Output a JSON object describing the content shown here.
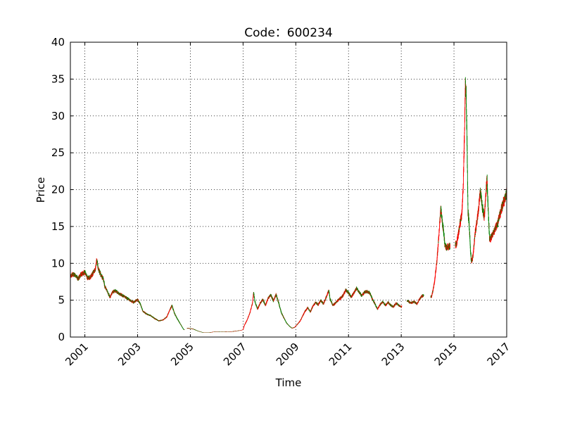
{
  "chart_data": {
    "type": "candlestick",
    "title": "Code：600234",
    "xlabel": "Time",
    "ylabel": "Price",
    "xlim": [
      2000.45,
      2017.0
    ],
    "ylim": [
      0,
      40
    ],
    "yticks": [
      0,
      5,
      10,
      15,
      20,
      25,
      30,
      35,
      40
    ],
    "xticks": [
      2001,
      2003,
      2005,
      2007,
      2009,
      2011,
      2013,
      2015,
      2017
    ],
    "xtick_labels": [
      "2001",
      "2003",
      "2005",
      "2007",
      "2009",
      "2011",
      "2013",
      "2015",
      "2017"
    ],
    "grid": true,
    "colors": {
      "up": "#ff0000",
      "down": "#008000"
    },
    "price_path": [
      [
        2000.45,
        8.2
      ],
      [
        2000.55,
        8.6
      ],
      [
        2000.65,
        8.3
      ],
      [
        2000.75,
        7.9
      ],
      [
        2000.85,
        8.5
      ],
      [
        2001.0,
        8.8
      ],
      [
        2001.1,
        8.0
      ],
      [
        2001.2,
        8.1
      ],
      [
        2001.3,
        8.6
      ],
      [
        2001.4,
        9.2
      ],
      [
        2001.45,
        10.5
      ],
      [
        2001.5,
        9.3
      ],
      [
        2001.6,
        8.5
      ],
      [
        2001.7,
        7.8
      ],
      [
        2001.75,
        6.9
      ],
      [
        2001.85,
        6.2
      ],
      [
        2001.95,
        5.4
      ],
      [
        2002.05,
        6.1
      ],
      [
        2002.15,
        6.3
      ],
      [
        2002.3,
        5.9
      ],
      [
        2002.45,
        5.6
      ],
      [
        2002.55,
        5.4
      ],
      [
        2002.7,
        5.0
      ],
      [
        2002.85,
        4.7
      ],
      [
        2003.0,
        5.1
      ],
      [
        2003.1,
        4.5
      ],
      [
        2003.2,
        3.5
      ],
      [
        2003.35,
        3.1
      ],
      [
        2003.5,
        2.9
      ],
      [
        2003.65,
        2.5
      ],
      [
        2003.8,
        2.2
      ],
      [
        2003.95,
        2.3
      ],
      [
        2004.1,
        2.7
      ],
      [
        2004.2,
        3.5
      ],
      [
        2004.3,
        4.3
      ],
      [
        2004.4,
        3.2
      ],
      [
        2004.5,
        2.5
      ],
      [
        2004.6,
        1.9
      ],
      [
        2004.7,
        1.3
      ],
      [
        2004.75,
        1.0
      ],
      [
        2004.9,
        1.2
      ],
      [
        2005.1,
        1.1
      ],
      [
        2005.3,
        0.8
      ],
      [
        2005.5,
        0.6
      ],
      [
        2005.7,
        0.6
      ],
      [
        2005.9,
        0.7
      ],
      [
        2006.1,
        0.7
      ],
      [
        2006.3,
        0.7
      ],
      [
        2006.5,
        0.7
      ],
      [
        2006.7,
        0.8
      ],
      [
        2006.9,
        0.9
      ],
      [
        2007.0,
        1.0
      ],
      [
        2007.05,
        1.6
      ],
      [
        2007.15,
        2.3
      ],
      [
        2007.25,
        3.2
      ],
      [
        2007.35,
        4.5
      ],
      [
        2007.4,
        6.0
      ],
      [
        2007.45,
        4.8
      ],
      [
        2007.55,
        3.8
      ],
      [
        2007.65,
        4.6
      ],
      [
        2007.75,
        5.1
      ],
      [
        2007.85,
        4.3
      ],
      [
        2007.95,
        5.3
      ],
      [
        2008.05,
        5.7
      ],
      [
        2008.15,
        4.9
      ],
      [
        2008.25,
        5.8
      ],
      [
        2008.35,
        4.6
      ],
      [
        2008.45,
        3.3
      ],
      [
        2008.55,
        2.6
      ],
      [
        2008.65,
        1.9
      ],
      [
        2008.75,
        1.5
      ],
      [
        2008.85,
        1.2
      ],
      [
        2008.95,
        1.3
      ],
      [
        2009.05,
        1.7
      ],
      [
        2009.15,
        2.1
      ],
      [
        2009.25,
        2.8
      ],
      [
        2009.35,
        3.5
      ],
      [
        2009.45,
        4.0
      ],
      [
        2009.55,
        3.4
      ],
      [
        2009.65,
        4.2
      ],
      [
        2009.75,
        4.7
      ],
      [
        2009.85,
        4.4
      ],
      [
        2009.95,
        5.0
      ],
      [
        2010.05,
        4.5
      ],
      [
        2010.15,
        5.4
      ],
      [
        2010.25,
        6.3
      ],
      [
        2010.3,
        5.2
      ],
      [
        2010.4,
        4.3
      ],
      [
        2010.5,
        4.6
      ],
      [
        2010.6,
        5.0
      ],
      [
        2010.7,
        5.3
      ],
      [
        2010.8,
        5.7
      ],
      [
        2010.9,
        6.4
      ],
      [
        2011.0,
        6.0
      ],
      [
        2011.1,
        5.4
      ],
      [
        2011.2,
        6.0
      ],
      [
        2011.3,
        6.6
      ],
      [
        2011.4,
        6.1
      ],
      [
        2011.5,
        5.6
      ],
      [
        2011.6,
        6.1
      ],
      [
        2011.7,
        6.2
      ],
      [
        2011.8,
        6.0
      ],
      [
        2011.9,
        5.2
      ],
      [
        2012.0,
        4.5
      ],
      [
        2012.1,
        3.8
      ],
      [
        2012.2,
        4.4
      ],
      [
        2012.3,
        4.8
      ],
      [
        2012.4,
        4.3
      ],
      [
        2012.5,
        4.7
      ],
      [
        2012.6,
        4.3
      ],
      [
        2012.7,
        4.1
      ],
      [
        2012.8,
        4.6
      ],
      [
        2012.9,
        4.3
      ],
      [
        2013.0,
        4.1
      ],
      [
        2013.25,
        4.9
      ],
      [
        2013.35,
        4.6
      ],
      [
        2013.5,
        4.8
      ],
      [
        2013.6,
        4.5
      ],
      [
        2013.7,
        5.2
      ],
      [
        2013.8,
        5.6
      ],
      [
        2014.15,
        5.5
      ],
      [
        2014.25,
        7.2
      ],
      [
        2014.35,
        10.2
      ],
      [
        2014.42,
        13.5
      ],
      [
        2014.5,
        17.5
      ],
      [
        2014.55,
        15.8
      ],
      [
        2014.6,
        14.5
      ],
      [
        2014.65,
        12.6
      ],
      [
        2014.7,
        12.1
      ],
      [
        2014.8,
        12.3
      ],
      [
        2015.1,
        12.6
      ],
      [
        2015.2,
        14.8
      ],
      [
        2015.3,
        16.8
      ],
      [
        2015.35,
        20.5
      ],
      [
        2015.4,
        28.0
      ],
      [
        2015.43,
        34.5
      ],
      [
        2015.46,
        33.0
      ],
      [
        2015.5,
        25.0
      ],
      [
        2015.53,
        17.0
      ],
      [
        2015.57,
        15.5
      ],
      [
        2015.62,
        12.0
      ],
      [
        2015.66,
        10.2
      ],
      [
        2015.72,
        11.0
      ],
      [
        2015.8,
        14.0
      ],
      [
        2015.9,
        16.5
      ],
      [
        2016.0,
        19.8
      ],
      [
        2016.08,
        17.5
      ],
      [
        2016.15,
        16.3
      ],
      [
        2016.2,
        19.0
      ],
      [
        2016.25,
        21.5
      ],
      [
        2016.3,
        17.0
      ],
      [
        2016.35,
        13.2
      ],
      [
        2016.45,
        13.8
      ],
      [
        2016.55,
        14.6
      ],
      [
        2016.65,
        15.3
      ],
      [
        2016.75,
        16.8
      ],
      [
        2016.85,
        18.0
      ],
      [
        2016.92,
        18.7
      ],
      [
        2017.0,
        19.5
      ]
    ],
    "gaps": [
      [
        2004.78,
        2004.88
      ],
      [
        2013.02,
        2013.22
      ],
      [
        2013.85,
        2014.12
      ],
      [
        2014.85,
        2015.05
      ]
    ]
  }
}
